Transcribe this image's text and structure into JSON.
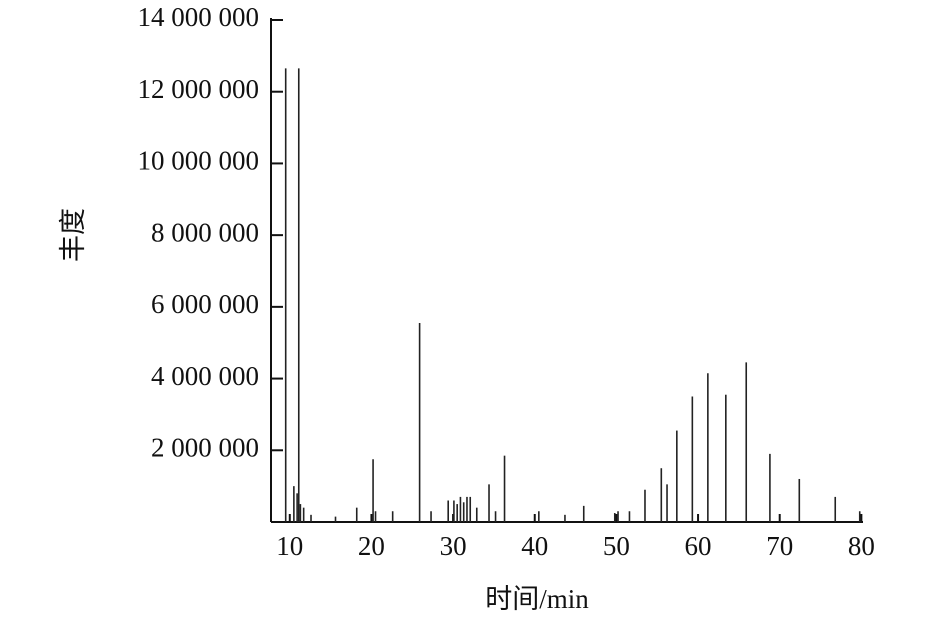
{
  "chart_data": {
    "type": "stem",
    "x_label": "时间/min",
    "y_label": "丰度",
    "color": "#222222",
    "x": [
      9.5,
      10.5,
      10.9,
      11.1,
      11.3,
      11.7,
      12.6,
      15.6,
      18.2,
      20.2,
      20.5,
      22.6,
      25.9,
      27.3,
      29.4,
      30.1,
      30.5,
      30.9,
      31.3,
      31.7,
      32.1,
      32.9,
      34.4,
      35.2,
      36.3,
      40.5,
      43.7,
      46.0,
      49.8,
      50.2,
      51.6,
      53.5,
      55.5,
      56.2,
      57.4,
      59.3,
      61.2,
      63.4,
      65.9,
      68.8,
      72.4,
      76.8,
      79.8
    ],
    "values": [
      12650000,
      1000000,
      800000,
      12650000,
      500000,
      400000,
      200000,
      150000,
      400000,
      1750000,
      300000,
      300000,
      5550000,
      300000,
      600000,
      600000,
      500000,
      700000,
      550000,
      700000,
      700000,
      400000,
      1050000,
      300000,
      1850000,
      300000,
      200000,
      450000,
      250000,
      300000,
      300000,
      900000,
      1500000,
      1050000,
      2550000,
      3500000,
      4150000,
      3550000,
      4450000,
      1900000,
      1200000,
      700000,
      300000
    ],
    "xlim": [
      7.7,
      80.2
    ],
    "xticks": [
      10,
      20,
      30,
      40,
      50,
      60,
      70,
      80
    ],
    "ylim": [
      0,
      14000000
    ],
    "yticks": [
      {
        "value": 2000000,
        "label": "2 000 000"
      },
      {
        "value": 4000000,
        "label": "4 000 000"
      },
      {
        "value": 6000000,
        "label": "6 000 000"
      },
      {
        "value": 8000000,
        "label": "8 000 000"
      },
      {
        "value": 10000000,
        "label": "10 000 000"
      },
      {
        "value": 12000000,
        "label": "12 000 000"
      },
      {
        "value": 14000000,
        "label": "14 000 000"
      }
    ]
  }
}
